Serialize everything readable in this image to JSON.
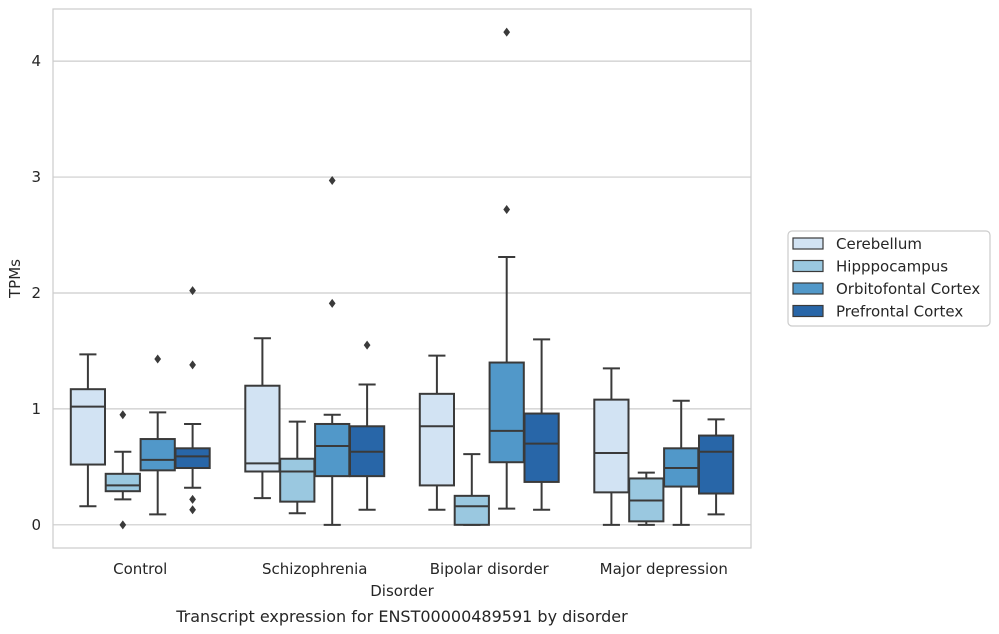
{
  "chart_data": {
    "type": "box",
    "title": "",
    "caption": "Transcript expression for ENST00000489591 by disorder",
    "xlabel": "Disorder",
    "ylabel": "TPMs",
    "ylim": [
      -0.2,
      4.45
    ],
    "yticks": [
      0,
      1,
      2,
      3,
      4
    ],
    "grid": "horizontal",
    "legend_position": "right",
    "categories": [
      "Control",
      "Schizophrenia",
      "Bipolar disorder",
      "Major depression"
    ],
    "series": [
      {
        "name": "Cerebellum",
        "color": "#d2e3f3",
        "boxes": [
          {
            "whisker_low": 0.16,
            "q1": 0.52,
            "median": 1.02,
            "q3": 1.17,
            "whisker_high": 1.47,
            "outliers": []
          },
          {
            "whisker_low": 0.23,
            "q1": 0.46,
            "median": 0.53,
            "q3": 1.2,
            "whisker_high": 1.61,
            "outliers": []
          },
          {
            "whisker_low": 0.13,
            "q1": 0.34,
            "median": 0.85,
            "q3": 1.13,
            "whisker_high": 1.46,
            "outliers": []
          },
          {
            "whisker_low": 0.0,
            "q1": 0.28,
            "median": 0.62,
            "q3": 1.08,
            "whisker_high": 1.35,
            "outliers": []
          }
        ]
      },
      {
        "name": "Hipppocampus",
        "color": "#9ac8e0",
        "boxes": [
          {
            "whisker_low": 0.22,
            "q1": 0.29,
            "median": 0.34,
            "q3": 0.44,
            "whisker_high": 0.63,
            "outliers": [
              0.95,
              0.0
            ]
          },
          {
            "whisker_low": 0.1,
            "q1": 0.2,
            "median": 0.46,
            "q3": 0.57,
            "whisker_high": 0.89,
            "outliers": []
          },
          {
            "whisker_low": 0.0,
            "q1": 0.0,
            "median": 0.16,
            "q3": 0.25,
            "whisker_high": 0.61,
            "outliers": []
          },
          {
            "whisker_low": 0.0,
            "q1": 0.03,
            "median": 0.21,
            "q3": 0.4,
            "whisker_high": 0.45,
            "outliers": []
          }
        ]
      },
      {
        "name": "Orbitofontal Cortex",
        "color": "#5198c9",
        "boxes": [
          {
            "whisker_low": 0.09,
            "q1": 0.47,
            "median": 0.56,
            "q3": 0.74,
            "whisker_high": 0.97,
            "outliers": [
              1.43
            ]
          },
          {
            "whisker_low": 0.0,
            "q1": 0.42,
            "median": 0.68,
            "q3": 0.87,
            "whisker_high": 0.95,
            "outliers": [
              2.97,
              1.91
            ]
          },
          {
            "whisker_low": 0.14,
            "q1": 0.54,
            "median": 0.81,
            "q3": 1.4,
            "whisker_high": 2.31,
            "outliers": [
              4.25,
              2.72
            ]
          },
          {
            "whisker_low": 0.0,
            "q1": 0.33,
            "median": 0.49,
            "q3": 0.66,
            "whisker_high": 1.07,
            "outliers": []
          }
        ]
      },
      {
        "name": "Prefrontal Cortex",
        "color": "#2866a8",
        "boxes": [
          {
            "whisker_low": 0.32,
            "q1": 0.49,
            "median": 0.59,
            "q3": 0.66,
            "whisker_high": 0.87,
            "outliers": [
              2.02,
              1.38,
              0.22,
              0.13
            ]
          },
          {
            "whisker_low": 0.13,
            "q1": 0.42,
            "median": 0.63,
            "q3": 0.85,
            "whisker_high": 1.21,
            "outliers": [
              1.55
            ]
          },
          {
            "whisker_low": 0.13,
            "q1": 0.37,
            "median": 0.7,
            "q3": 0.96,
            "whisker_high": 1.6,
            "outliers": []
          },
          {
            "whisker_low": 0.09,
            "q1": 0.27,
            "median": 0.63,
            "q3": 0.77,
            "whisker_high": 0.91,
            "outliers": []
          }
        ]
      }
    ]
  }
}
